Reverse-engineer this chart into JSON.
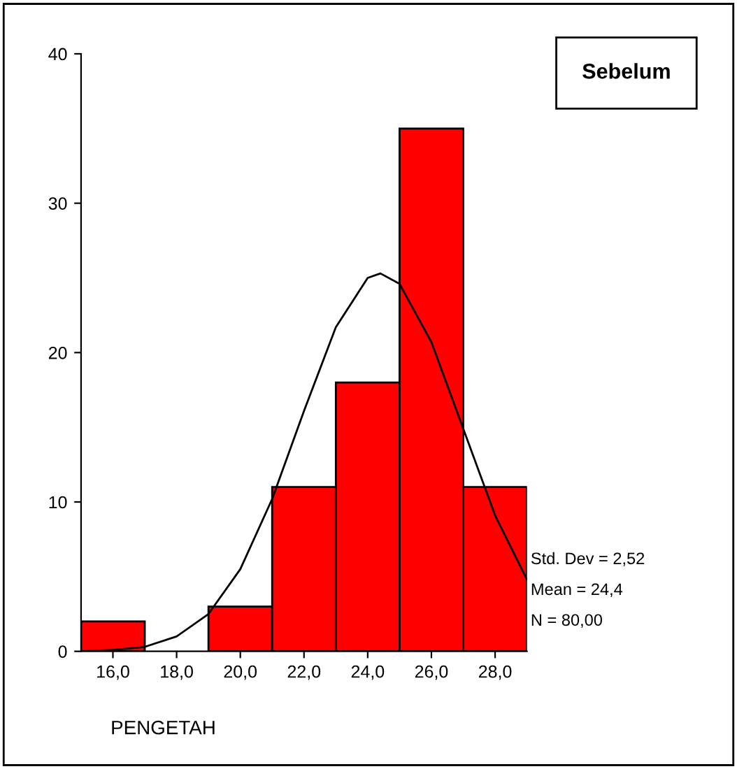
{
  "chart_data": {
    "type": "histogram",
    "xlabel": "PENGETAH",
    "bins": [
      15,
      17,
      19,
      21,
      23,
      25,
      27,
      29
    ],
    "values": [
      2,
      0,
      3,
      11,
      18,
      35,
      11
    ],
    "color": "#ff0000",
    "series": [
      {
        "type": "line",
        "color": "#000000",
        "x": [
          15,
          16,
          17,
          18,
          19,
          20,
          21,
          22,
          23,
          24,
          24.4,
          25,
          26,
          27,
          28,
          29
        ],
        "values": [
          0,
          0.1,
          0.3,
          1,
          2.5,
          5.5,
          10.2,
          16.1,
          21.7,
          25,
          25.3,
          24.6,
          20.7,
          14.9,
          9.1,
          4.8
        ]
      }
    ],
    "xlim": [
      15,
      29
    ],
    "xticks": [
      {
        "value": 16,
        "label": "16,0"
      },
      {
        "value": 18,
        "label": "18,0"
      },
      {
        "value": 20,
        "label": "20,0"
      },
      {
        "value": 22,
        "label": "22,0"
      },
      {
        "value": 24,
        "label": "24,0"
      },
      {
        "value": 26,
        "label": "26,0"
      },
      {
        "value": 28,
        "label": "28,0"
      }
    ],
    "ylim": [
      0,
      40
    ],
    "yticks": [
      0,
      10,
      20,
      30,
      40
    ],
    "grid": false,
    "marker": "none",
    "line_style": "solid",
    "annotations": [
      "Sebelum",
      "Std. Dev = 2,52",
      "Mean = 24,4",
      "N = 80,00"
    ]
  }
}
